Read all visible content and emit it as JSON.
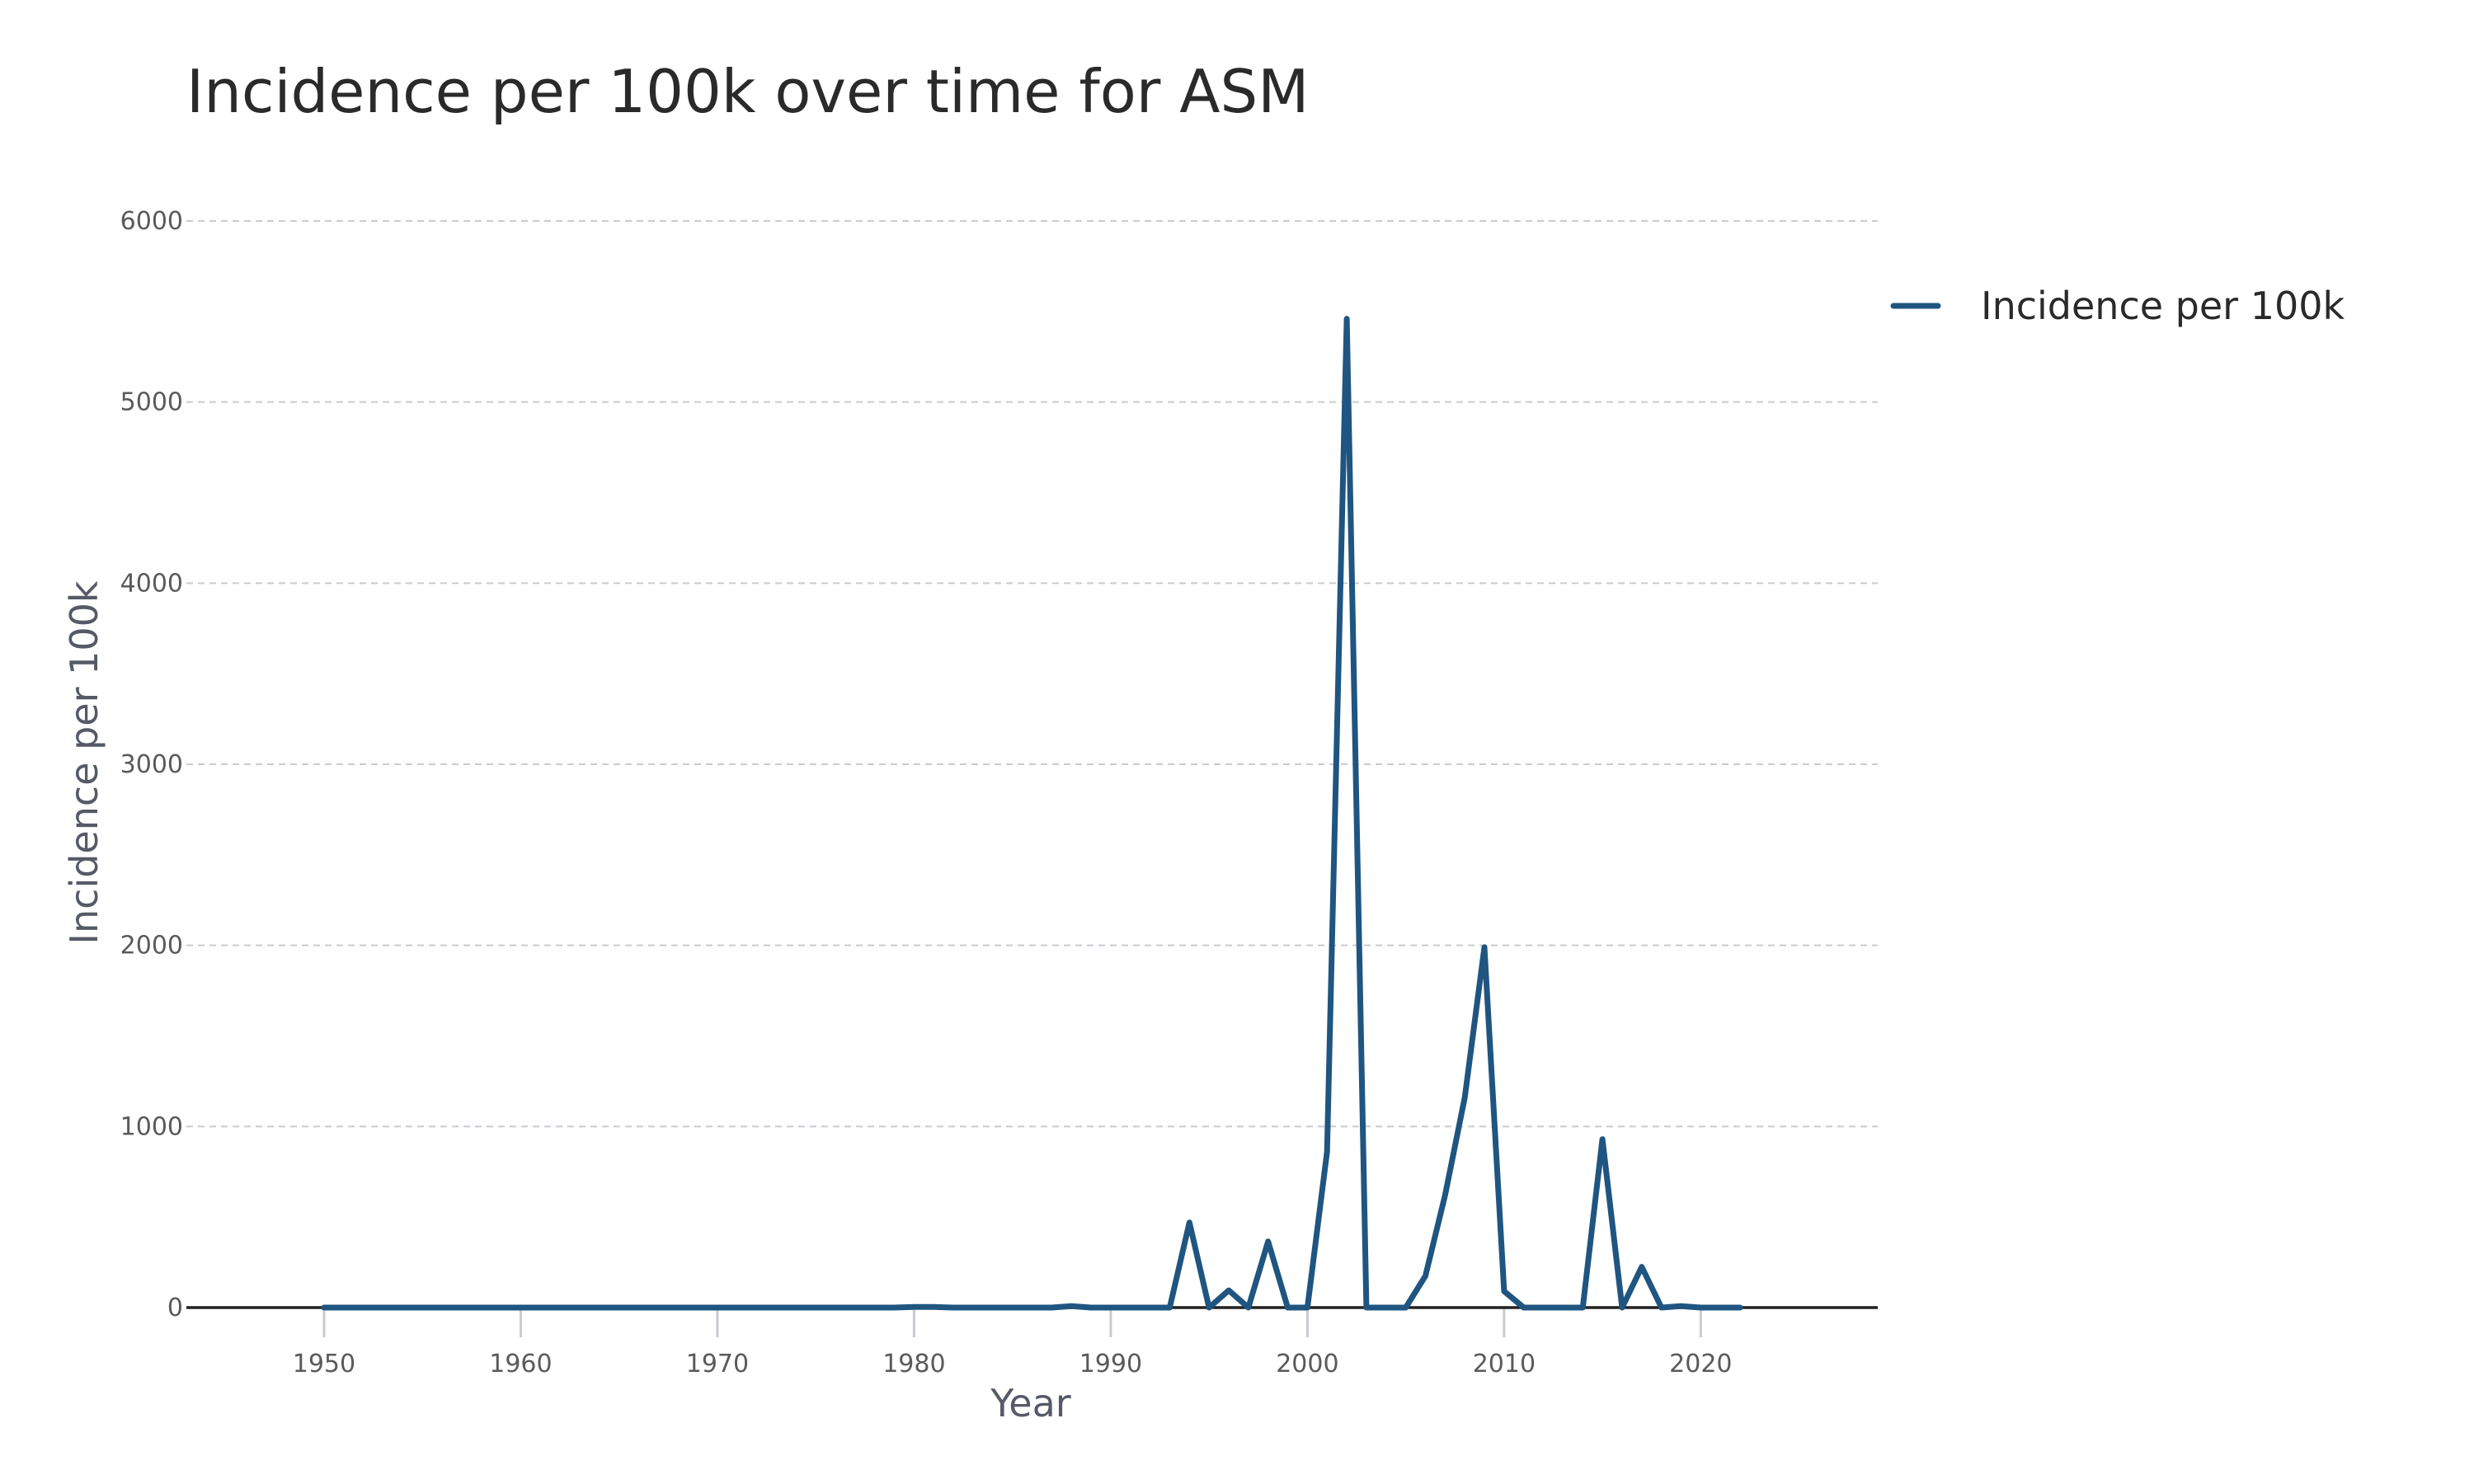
{
  "chart_data": {
    "type": "line",
    "title": "Incidence per 100k over time for ASM",
    "xlabel": "Year",
    "ylabel": "Incidence per 100k",
    "xlim": [
      1943,
      2029
    ],
    "ylim": [
      0,
      6000
    ],
    "x_ticks": [
      1950,
      1960,
      1970,
      1980,
      1990,
      2000,
      2010,
      2020
    ],
    "y_ticks": [
      0,
      1000,
      2000,
      3000,
      4000,
      5000,
      6000
    ],
    "grid": true,
    "legend_position": "top-right",
    "series": [
      {
        "name": "Incidence per 100k",
        "color": "#1f5580",
        "x": [
          1950,
          1951,
          1952,
          1953,
          1954,
          1955,
          1956,
          1957,
          1958,
          1959,
          1960,
          1961,
          1962,
          1963,
          1964,
          1965,
          1966,
          1967,
          1968,
          1969,
          1970,
          1971,
          1972,
          1973,
          1974,
          1975,
          1976,
          1977,
          1978,
          1979,
          1980,
          1981,
          1982,
          1983,
          1984,
          1985,
          1986,
          1987,
          1988,
          1989,
          1990,
          1991,
          1992,
          1993,
          1994,
          1995,
          1996,
          1997,
          1998,
          1999,
          2000,
          2001,
          2002,
          2003,
          2004,
          2005,
          2006,
          2007,
          2008,
          2009,
          2010,
          2011,
          2012,
          2013,
          2014,
          2015,
          2016,
          2017,
          2018,
          2019,
          2020,
          2021,
          2022
        ],
        "y": [
          0,
          0,
          0,
          0,
          0,
          0,
          0,
          0,
          0,
          0,
          0,
          0,
          0,
          0,
          0,
          0,
          0,
          0,
          0,
          0,
          0,
          0,
          0,
          0,
          0,
          0,
          0,
          0,
          0,
          0,
          3,
          3,
          0,
          0,
          0,
          0,
          0,
          0,
          8,
          0,
          0,
          0,
          0,
          0,
          470,
          0,
          95,
          0,
          365,
          0,
          0,
          860,
          5460,
          0,
          0,
          0,
          175,
          620,
          1160,
          1990,
          90,
          0,
          0,
          0,
          0,
          930,
          0,
          225,
          0,
          8,
          0,
          0,
          0
        ]
      }
    ]
  }
}
